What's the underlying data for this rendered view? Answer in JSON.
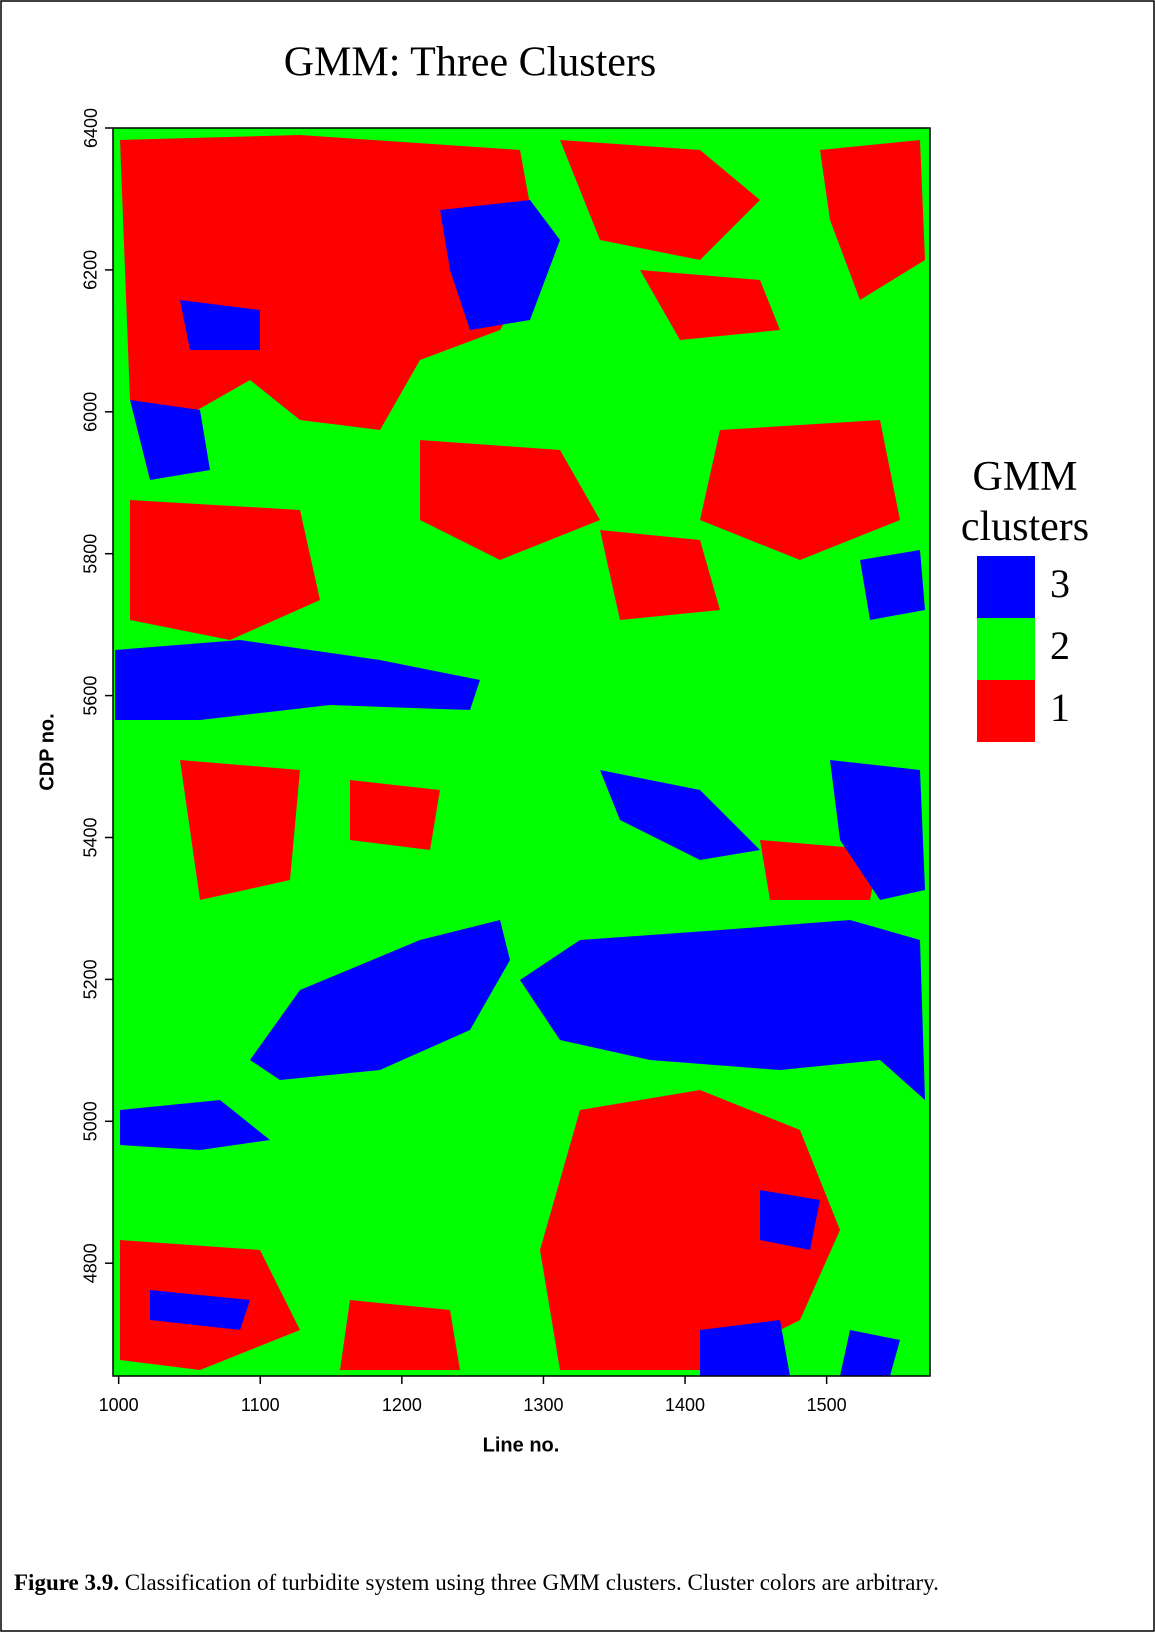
{
  "chart_data": {
    "type": "heatmap",
    "title": "GMM: Three Clusters",
    "x_label": "Line no.",
    "y_label": "CDP no.",
    "xlim": [
      996,
      1573
    ],
    "xticks": [
      1000,
      1100,
      1200,
      1300,
      1400,
      1500
    ],
    "ylim": [
      4641,
      6400
    ],
    "yticks": [
      4800,
      5000,
      5200,
      5400,
      5600,
      5800,
      6000,
      6200,
      6400
    ],
    "legend": {
      "title": "GMM clusters",
      "categories": [
        "3",
        "2",
        "1"
      ],
      "colors": [
        "#0000ff",
        "#00ff00",
        "#ff0000"
      ]
    }
  },
  "caption": {
    "label": "Figure 3.9.",
    "text": "Classification of turbidite system using three GMM clusters. Cluster colors are arbitrary."
  }
}
